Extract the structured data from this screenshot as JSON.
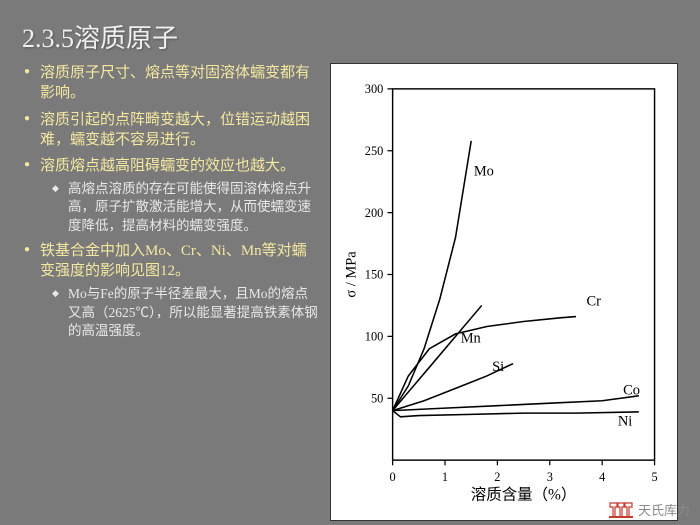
{
  "title": "2.3.5溶质原子",
  "bullets": [
    {
      "text": "溶质原子尺寸、熔点等对固溶体蠕变都有影响。"
    },
    {
      "text": "溶质引起的点阵畸变越大，位错运动越困难，蠕变越不容易进行。"
    },
    {
      "text": "溶质熔点越高阻碍蠕变的效应也越大。",
      "sub": [
        "高熔点溶质的存在可能使得固溶体熔点升高，原子扩散激活能增大，从而使蠕变速度降低，提高材料的蠕变强度。"
      ]
    },
    {
      "text": "铁基合金中加入Mo、Cr、Ni、Mn等对蠕变强度的影响见图12。",
      "sub": [
        "Mo与Fe的原子半径差最大，且Mo的熔点又高（2625℃），所以能显著提高铁素体钢的高温强度。"
      ]
    }
  ],
  "chart": {
    "type": "line",
    "xlabel": "溶质含量（%）",
    "ylabel": "σ / MPa",
    "xlim": [
      0,
      5
    ],
    "ylim": [
      0,
      300
    ],
    "xtick_step": 1,
    "ytick_step": 50,
    "background_color": "#ffffff",
    "axis_color": "#000000",
    "line_color": "#000000",
    "line_width": 1.5,
    "label_fontsize": 13,
    "tick_fontsize": 12,
    "series": [
      {
        "name": "Mo",
        "label_x": 1.55,
        "label_y": 230,
        "points": [
          [
            0,
            40
          ],
          [
            0.3,
            60
          ],
          [
            0.6,
            90
          ],
          [
            0.9,
            130
          ],
          [
            1.2,
            180
          ],
          [
            1.5,
            258
          ]
        ]
      },
      {
        "name": "Cr",
        "label_x": 3.7,
        "label_y": 125,
        "points": [
          [
            0,
            40
          ],
          [
            0.3,
            68
          ],
          [
            0.7,
            90
          ],
          [
            1.2,
            102
          ],
          [
            1.8,
            108
          ],
          [
            2.5,
            112
          ],
          [
            3.2,
            115
          ],
          [
            3.5,
            116
          ]
        ]
      },
      {
        "name": "Mn",
        "label_x": 1.3,
        "label_y": 95,
        "points": [
          [
            0,
            40
          ],
          [
            0.3,
            55
          ],
          [
            0.7,
            75
          ],
          [
            1.2,
            100
          ],
          [
            1.7,
            125
          ]
        ]
      },
      {
        "name": "Si",
        "label_x": 1.9,
        "label_y": 72,
        "points": [
          [
            0,
            40
          ],
          [
            0.6,
            48
          ],
          [
            1.2,
            58
          ],
          [
            1.8,
            68
          ],
          [
            2.3,
            78
          ]
        ]
      },
      {
        "name": "Co",
        "label_x": 4.4,
        "label_y": 53,
        "points": [
          [
            0,
            40
          ],
          [
            1,
            42
          ],
          [
            2,
            44
          ],
          [
            3,
            46
          ],
          [
            4,
            48
          ],
          [
            4.7,
            52
          ]
        ]
      },
      {
        "name": "Ni",
        "label_x": 4.3,
        "label_y": 28,
        "points": [
          [
            0,
            40
          ],
          [
            0.15,
            35
          ],
          [
            0.5,
            36
          ],
          [
            1.5,
            37
          ],
          [
            2.5,
            38
          ],
          [
            3.5,
            38
          ],
          [
            4.7,
            39
          ]
        ]
      }
    ]
  },
  "watermark": {
    "text": "天氏库力",
    "logo_color": "#c43a2e"
  }
}
